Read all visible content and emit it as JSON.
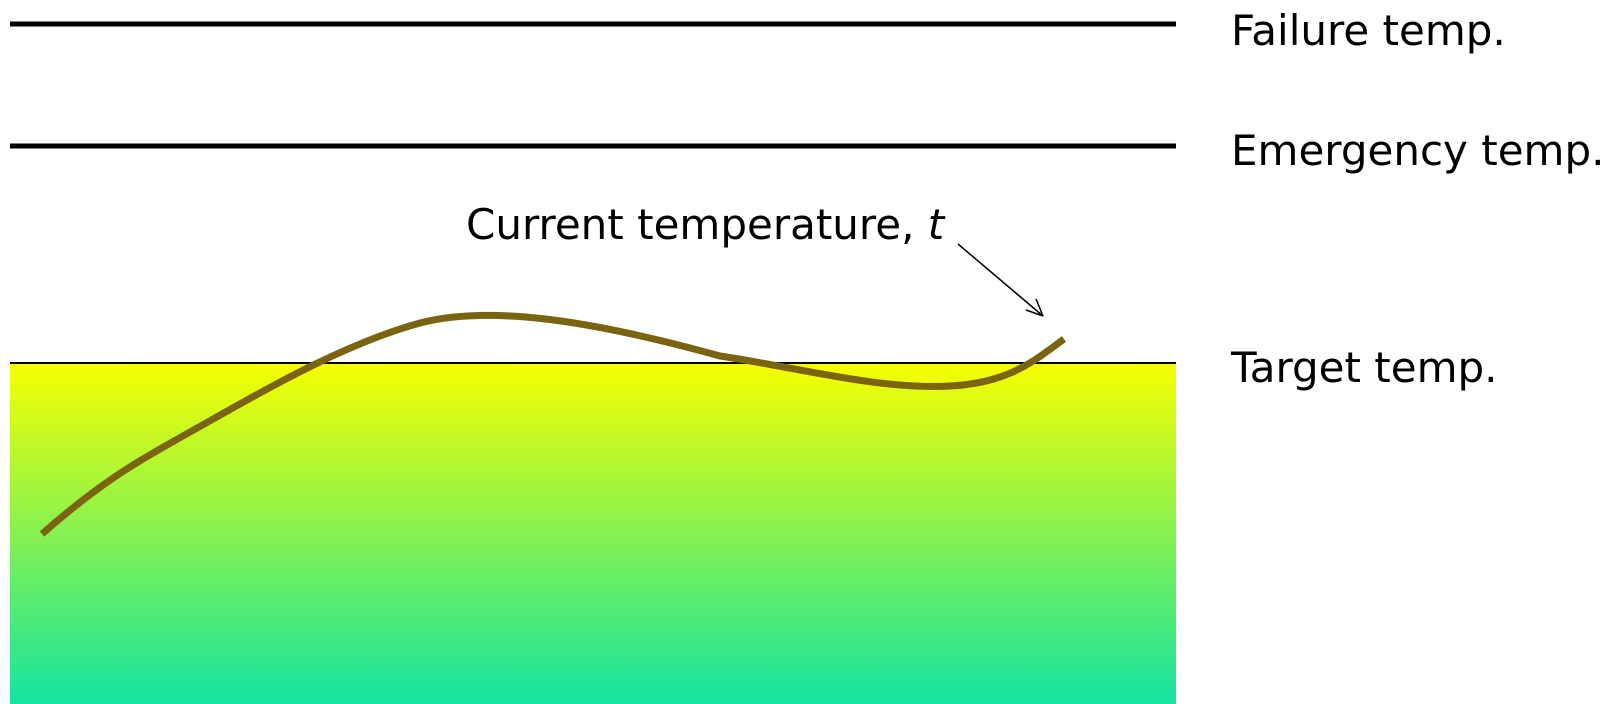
{
  "levels": {
    "failure": "Failure temp.",
    "emergency": "Emergency temp.",
    "target": "Target temp."
  },
  "curve_label": {
    "text": "Current temperature, ",
    "variable": "t"
  },
  "colors": {
    "reference_line": "#000000",
    "curve": "#7a6410",
    "fill_top": "#f7ff00",
    "fill_bottom": "#12e3a3"
  }
}
